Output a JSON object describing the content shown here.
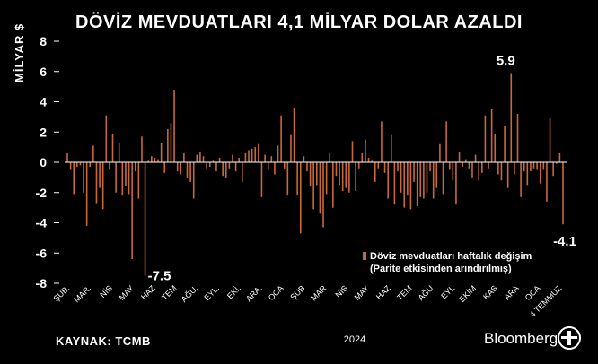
{
  "title": "DÖVİZ MEVDUATLARI 4,1 MİLYAR DOLAR AZALDI",
  "ylabel": "MİLYAR $",
  "source": "KAYNAK:  TCMB",
  "brand": "Bloomberg",
  "colors": {
    "background": "#000000",
    "bar": "#c8693a",
    "text": "#ffffff",
    "axis": "#ffffff"
  },
  "chart_data": {
    "type": "bar",
    "ylim": [
      -8,
      8
    ],
    "yticks": [
      -8,
      -6,
      -4,
      -2,
      0,
      2,
      4,
      6,
      8
    ],
    "ytick_labels": [
      "-8",
      "-6",
      "-4",
      "-2",
      "0",
      "2",
      "4",
      "6",
      "8"
    ],
    "grid": false,
    "x_tick_labels": [
      "ŞUB.",
      "MAR.",
      "NİS",
      "MAY",
      "HAZ",
      "TEM",
      "AĞU.",
      "EYL.",
      "EKİ.",
      "ARA.",
      "OCA",
      "ŞUB",
      "MAR",
      "NİS",
      "MAY",
      "HAZ",
      "TEM",
      "AĞU",
      "EYL",
      "EKİM",
      "KAS",
      "ARA",
      "OCA",
      "4 TEMMUZ"
    ],
    "year_label": "2024",
    "legend": {
      "position": "right",
      "line1": "Döviz mevduatları haftalık değişim",
      "line2": "(Parite etkisinden arındırılmış)"
    },
    "annotations": [
      {
        "text": "-7.5",
        "value": -7.5
      },
      {
        "text": "5.9",
        "value": 5.9
      },
      {
        "text": "-4.1",
        "value": -4.1
      }
    ],
    "values": [
      0.6,
      -0.5,
      -2.1,
      -0.3,
      -0.2,
      -2.0,
      -4.2,
      -0.3,
      1.1,
      -2.7,
      -1.7,
      -3.1,
      3.1,
      -0.5,
      1.9,
      -2.0,
      1.3,
      -2.2,
      -1.6,
      -2.1,
      -6.4,
      -0.6,
      -2.4,
      1.7,
      -7.5,
      0.1,
      0.4,
      0.3,
      0.2,
      1.3,
      -0.7,
      2.2,
      2.6,
      4.8,
      -0.6,
      -0.8,
      0.6,
      -1.0,
      -1.3,
      -2.4,
      0.5,
      0.7,
      0.4,
      -0.4,
      -0.3,
      0.1,
      -0.6,
      0.3,
      -0.9,
      -1.0,
      -0.4,
      0.5,
      -0.6,
      0.3,
      -1.3,
      0.6,
      0.8,
      0.9,
      1.0,
      1.2,
      -2.3,
      0.5,
      -0.5,
      0.4,
      -0.8,
      1.1,
      3.1,
      -0.4,
      -2.2,
      1.8,
      3.6,
      -2.2,
      -4.7,
      0.4,
      -0.6,
      -1.6,
      -3.1,
      -1.5,
      -3.4,
      -4.3,
      -2.1,
      0.6,
      -3.0,
      -0.9,
      -1.5,
      -1.9,
      -1.7,
      -2.0,
      1.4,
      -1.9,
      -0.4,
      0.6,
      1.5,
      0.3,
      0.1,
      -1.3,
      -0.4,
      2.7,
      -0.7,
      -2.4,
      1.8,
      -2.8,
      -0.6,
      -2.0,
      -3.0,
      -2.2,
      -3.1,
      -1.3,
      -2.9,
      -2.3,
      -2.4,
      -2.0,
      -0.6,
      -2.4,
      -1.7,
      1.2,
      -2.1,
      2.7,
      -0.5,
      -1.2,
      -2.8,
      0.7,
      -0.3,
      0.2,
      -0.4,
      -1.0,
      0.5,
      -1.2,
      -0.7,
      3.1,
      -0.4,
      3.5,
      1.9,
      -0.8,
      -1.2,
      2.4,
      -1.7,
      5.9,
      -0.8,
      3.2,
      -2.3,
      -0.6,
      -1.5,
      -0.6,
      -0.4,
      -0.5,
      -1.4,
      -0.5,
      -2.6,
      2.9,
      -0.9,
      -0.1,
      0.6,
      -4.1
    ]
  }
}
